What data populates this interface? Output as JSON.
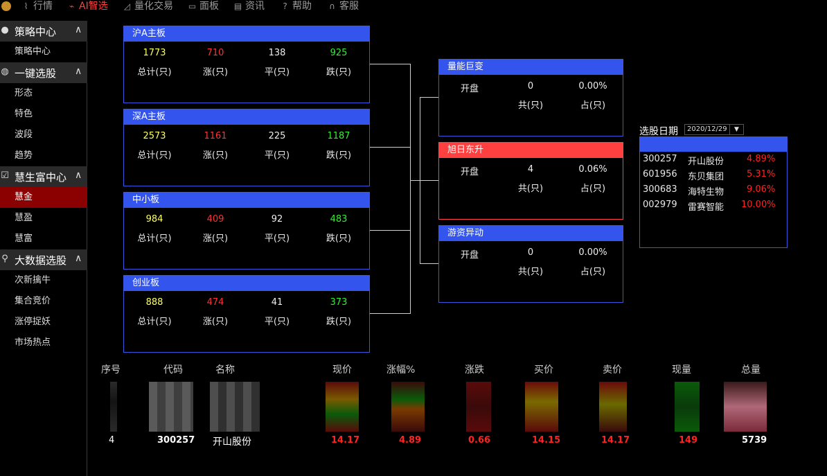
{
  "nav": {
    "items": [
      {
        "label": "行情",
        "icon": "line-chart-icon"
      },
      {
        "label": "AI智选",
        "icon": "ai-chart-icon"
      },
      {
        "label": "量化交易",
        "icon": "quant-chart-icon"
      },
      {
        "label": "面板",
        "icon": "panel-icon"
      },
      {
        "label": "资讯",
        "icon": "news-icon"
      },
      {
        "label": "帮助",
        "icon": "help-icon"
      },
      {
        "label": "客服",
        "icon": "headset-icon"
      }
    ]
  },
  "sidebar": {
    "groups": [
      {
        "title": "策略中心",
        "items": [
          "策略中心"
        ]
      },
      {
        "title": "一键选股",
        "items": [
          "形态",
          "特色",
          "波段",
          "趋势"
        ]
      },
      {
        "title": "慧生富中心",
        "items": [
          "慧金",
          "慧盈",
          "慧富"
        ]
      },
      {
        "title": "大数据选股",
        "items": [
          "次新擒牛",
          "集合竞价",
          "涨停捉妖",
          "市场热点"
        ]
      }
    ],
    "active_item": "慧金"
  },
  "stat_labels": {
    "total": "总计(只)",
    "up": "涨(只)",
    "flat": "平(只)",
    "down": "跌(只)"
  },
  "markets": [
    {
      "name": "沪A主板",
      "total": "1773",
      "up": "710",
      "flat": "138",
      "down": "925"
    },
    {
      "name": "深A主板",
      "total": "2573",
      "up": "1161",
      "flat": "225",
      "down": "1187"
    },
    {
      "name": "中小板",
      "total": "984",
      "up": "409",
      "flat": "92",
      "down": "483"
    },
    {
      "name": "创业板",
      "total": "888",
      "up": "474",
      "flat": "41",
      "down": "373"
    }
  ],
  "strategy_labels": {
    "open": "开盘",
    "count": "共(只)",
    "ratio": "占(只)"
  },
  "strategies": [
    {
      "name": "量能巨变",
      "count": "0",
      "ratio": "0.00%",
      "highlight": false
    },
    {
      "name": "旭日东升",
      "count": "4",
      "ratio": "0.06%",
      "highlight": true
    },
    {
      "name": "游资异动",
      "count": "0",
      "ratio": "0.00%",
      "highlight": false
    }
  ],
  "picker": {
    "label": "选股日期",
    "date": "2020/12/29",
    "stocks": [
      {
        "code": "300257",
        "name": "开山股份",
        "pct": "4.89%"
      },
      {
        "code": "601956",
        "name": "东贝集团",
        "pct": "5.31%"
      },
      {
        "code": "300683",
        "name": "海特生物",
        "pct": "9.06%"
      },
      {
        "code": "002979",
        "name": "雷赛智能",
        "pct": "10.00%"
      }
    ]
  },
  "table": {
    "headers": [
      "序号",
      "代码",
      "名称",
      "现价",
      "涨幅%",
      "涨跌",
      "买价",
      "卖价",
      "现量",
      "总量"
    ],
    "last_row": {
      "index": "4",
      "code": "300257",
      "name": "开山股份",
      "price": "14.17",
      "pct": "4.89",
      "change": "0.66",
      "bid": "14.15",
      "ask": "14.17",
      "vol": "149",
      "total": "5739"
    }
  },
  "colors": {
    "accent_blue": "#3355ee",
    "hot_red": "#ff4040",
    "up_red": "#ff3333",
    "down_green": "#33ee33",
    "total_yellow": "#ffff66"
  }
}
